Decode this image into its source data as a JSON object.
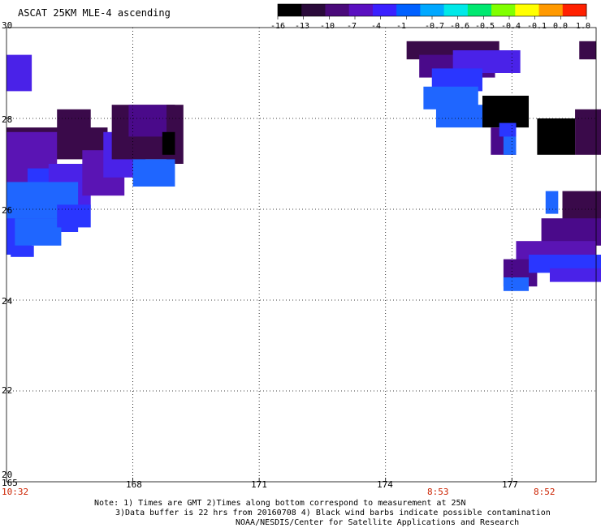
{
  "title": "ASCAT 25KM MLE-4 ascending",
  "colorbar": {
    "labels": [
      "-16",
      "-13",
      "-10",
      "-7",
      "-4",
      "-1",
      "-0.7",
      "-0.6",
      "-0.5",
      "-0.4",
      "-0.1",
      "0.0",
      "1.0"
    ],
    "colors": [
      "#000000",
      "#2a0a3a",
      "#4a0a7a",
      "#5a10c0",
      "#3a20ff",
      "#0060ff",
      "#00a8ff",
      "#00e8e8",
      "#00e870",
      "#80ff00",
      "#ffff00",
      "#ff9900",
      "#ff2000"
    ]
  },
  "axes": {
    "lon_ticks": [
      "165",
      "168",
      "171",
      "174",
      "177"
    ],
    "lat_ticks": [
      "30",
      "28",
      "26",
      "24",
      "22",
      "20"
    ],
    "lon_range": [
      165,
      179
    ],
    "lat_range": [
      20,
      30
    ]
  },
  "times": [
    "10:32",
    "8:53",
    "8:52"
  ],
  "notes": [
    "Note: 1) Times are GMT 2)Times along bottom correspond to measurement at 25N",
    "3)Data buffer is 22 hrs from 20160708 4) Black wind barbs indicate possible contamination",
    "NOAA/NESDIS/Center for Satellite Applications and Research"
  ],
  "data_colors": {
    "no_data": "#ffffff",
    "dark_purple": "#3a0a4a",
    "purple": "#4a0a8a",
    "violet": "#5a14b4",
    "blue_violet": "#4a22e8",
    "blue": "#2a36ff",
    "light_blue": "#1f66ff",
    "black": "#000000"
  }
}
